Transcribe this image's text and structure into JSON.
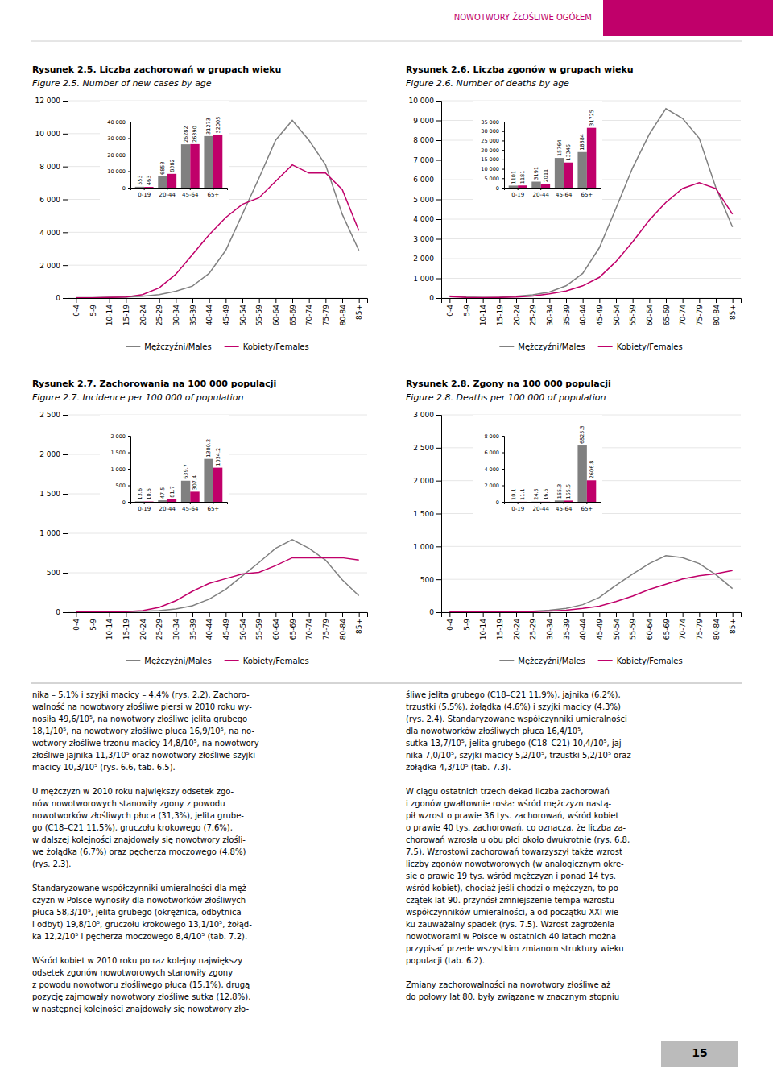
{
  "header": {
    "text": "NOWOTWORY ŽŁOŚLIWE OGÓŁEM",
    "color": "#c0006a"
  },
  "page_number": "15",
  "body_text": [
    [
      [
        "nika – 5,1% i szyjki macicy – 4,4% (rys. 2.2). Zachoro-",
        "walność na nowotwory złośliwe piersi w 2010 roku wy-",
        "nosiła 49,6/10⁵, na nowotwory złośliwe jelita grubego",
        "18,1/10⁵, na nowotwory złośliwe płuca 16,9/10⁵, na no-",
        "wotwory złośliwe trzonu macicy 14,8/10⁵, na nowotwory",
        "złośliwe jajnika 11,3/10⁵ oraz nowotwory złośliwe szyjki",
        "macicy 10,3/10⁵ (rys. 6.6, tab. 6.5)."
      ],
      [
        "U mężczyzn w 2010 roku największy odsetek zgo-",
        "nów nowotworowych stanowiły zgony z powodu",
        "nowotworków złośliwych płuca (31,3%), jelita grube-",
        "go (C18–C21 11,5%), gruczołu krokowego (7,6%),",
        "w dalszej kolejności znajdowały się nowotwory złośli-",
        "we żołądka (6,7%) oraz pęcherza moczowego (4,8%)",
        "(rys. 2.3)."
      ],
      [
        "Standaryzowane współczynniki umieralności dla męż-",
        "czyzn w Polsce wynosiły dla nowotworków złośliwych",
        "płuca 58,3/10⁵, jelita grubego (okrężnica, odbytnica",
        "i odbyt) 19,8/10⁵, gruczołu krokowego 13,1/10⁵, żołąd-",
        "ka 12,2/10⁵ i pęcherza moczowego 8,4/10⁵ (tab. 7.2)."
      ],
      [
        "Wśród kobiet w 2010 roku po raz kolejny największy",
        "odsetek zgonów nowotworowych stanowiły zgony",
        "z powodu nowotworu złośliwego płuca (15,1%), drugą",
        "pozycję zajmowały nowotwory złośliwe sutka (12,8%),",
        "w następnej kolejności znajdowały się nowotwory zło-"
      ]
    ],
    [
      [
        "śliwe jelita grubego (C18–C21 11,9%), jajnika (6,2%),",
        "trzustki (5,5%), żołądka (4,6%) i szyjki macicy (4,3%)",
        "(rys. 2.4). Standaryzowane współczynniki umieralności",
        "dla nowotworków złośliwych płuca 16,4/10⁵,",
        "sutka 13,7/10⁵, jelita grubego (C18–C21) 10,4/10⁵, jaj-",
        "nika 7,0/10⁵, szyjki macicy 5,2/10⁵, trzustki 5,2/10⁵ oraz",
        "żołądka 4,3/10⁵ (tab. 7.3)."
      ],
      [
        "W ciągu ostatnich trzech dekad liczba zachorowań",
        "i zgonów gwałtownie rosła: wśród mężczyzn nastą-",
        "pił wzrost o prawie 36 tys. zachorowań, wśród kobiet",
        "o prawie 40 tys. zachorowań, co oznacza, że liczba za-",
        "chorowań wzrosła u obu płci około dwukrotnie (rys. 6.8,",
        "7.5). Wzrostowi zachorowań towarzyszył także wzrost",
        "liczby zgonów nowotworowych (w analogicznym okre-",
        "sie o prawie 19 tys. wśród mężczyzn i ponad 14 tys.",
        "wśród kobiet), chociaż jeśli chodzi o mężczyzn, to po-",
        "czątek lat 90. przynósł zmniejszenie tempa wzrostu",
        "współczynników umieralności, a od początku XXI wie-",
        "ku zauważalny spadek (rys. 7.5). Wzrost zagrożenia",
        "nowotworami w Polsce w ostatnich 40 latach można",
        "przypisać przede wszystkim zmianom struktury wieku",
        "populacji (tab. 6.2)."
      ],
      [
        "Zmiany zachorowalności na nowotwory złośliwe aż",
        "do połowy lat 80. były związane w znacznym stopniu"
      ]
    ]
  ],
  "chart_data": [
    {
      "type": "line",
      "title": "Rysunek 2.5. Liczba zachorowań w grupach wieku",
      "subtitle": "Figure 2.5. Number of new cases by age",
      "categories": [
        "0-4",
        "5-9",
        "10-14",
        "15-19",
        "20-24",
        "25-29",
        "30-34",
        "35-39",
        "40-44",
        "45-49",
        "50-54",
        "55-59",
        "60-64",
        "65-69",
        "70-74",
        "75-79",
        "80-84",
        "85+"
      ],
      "series": [
        {
          "name": "Mężczyźni/Males",
          "color": "#808080",
          "values": [
            20,
            25,
            45,
            65,
            110,
            210,
            420,
            730,
            1500,
            2900,
            5100,
            7300,
            9600,
            10800,
            9600,
            8100,
            5100,
            2900
          ]
        },
        {
          "name": "Kobiety/Females",
          "color": "#c0006a",
          "values": [
            15,
            18,
            32,
            65,
            210,
            620,
            1450,
            2650,
            3850,
            4900,
            5700,
            6100,
            7100,
            8100,
            7600,
            7600,
            6600,
            4100
          ]
        }
      ],
      "ylim": [
        0,
        12000
      ],
      "yticks": [
        0,
        {
          "value": 2000,
          "label": "2 000"
        },
        {
          "value": 4000,
          "label": "4 000"
        },
        {
          "value": 6000,
          "label": "6 000"
        },
        {
          "value": 8000,
          "label": "8 000"
        },
        {
          "value": 10000,
          "label": "10 000"
        },
        {
          "value": 12000,
          "label": "12 000"
        }
      ],
      "grid": true,
      "legend": "bottom"
    },
    {
      "type": "bar",
      "categories": [
        "0-19",
        "20-44",
        "45-64",
        "65+"
      ],
      "series": [
        {
          "color": "#808080",
          "values": [
            553,
            6853,
            26282,
            31273
          ]
        },
        {
          "color": "#c0006a",
          "values": [
            463,
            8382,
            26390,
            32005
          ]
        }
      ],
      "ylim": [
        0,
        40000
      ],
      "yticks": [
        0,
        {
          "value": 10000,
          "label": "10 000"
        },
        {
          "value": 20000,
          "label": "20 000"
        },
        {
          "value": 30000,
          "label": "30 000"
        },
        {
          "value": 40000,
          "label": "40 000"
        }
      ],
      "data_labels": true
    },
    {
      "type": "line",
      "title": "Rysunek 2.6. Liczba zgonów w grupach wieku",
      "subtitle": "Figure 2.6. Number of deaths by age",
      "categories": [
        "0-4",
        "5-9",
        "10-14",
        "15-19",
        "20-24",
        "25-29",
        "30-34",
        "35-39",
        "40-44",
        "45-49",
        "50-54",
        "55-59",
        "60-64",
        "65-69",
        "70-74",
        "75-79",
        "80-84",
        "85+"
      ],
      "series": [
        {
          "name": "Mężczyźni/Males",
          "color": "#808080",
          "values": [
            100,
            50,
            35,
            45,
            90,
            160,
            310,
            620,
            1250,
            2550,
            4550,
            6600,
            8300,
            9600,
            9100,
            8100,
            5600,
            3600
          ]
        },
        {
          "name": "Kobiety/Females",
          "color": "#c0006a",
          "values": [
            70,
            35,
            22,
            32,
            55,
            105,
            210,
            360,
            620,
            1050,
            1850,
            2850,
            3950,
            4850,
            5550,
            5850,
            5550,
            4250
          ]
        }
      ],
      "ylim": [
        0,
        10000
      ],
      "yticks": [
        0,
        {
          "value": 1000,
          "label": "1 000"
        },
        {
          "value": 2000,
          "label": "2 000"
        },
        {
          "value": 3000,
          "label": "3 000"
        },
        {
          "value": 4000,
          "label": "4 000"
        },
        {
          "value": 5000,
          "label": "5 000"
        },
        {
          "value": 6000,
          "label": "6 000"
        },
        {
          "value": 7000,
          "label": "7 000"
        },
        {
          "value": 8000,
          "label": "8 000"
        },
        {
          "value": 9000,
          "label": "9 000"
        },
        {
          "value": 10000,
          "label": "10 000"
        }
      ],
      "grid": true,
      "legend": "bottom"
    },
    {
      "type": "bar",
      "categories": [
        "0-19",
        "20-44",
        "45-64",
        "65+"
      ],
      "series": [
        {
          "color": "#808080",
          "values": [
            1101,
            3191,
            15764,
            18884
          ]
        },
        {
          "color": "#c0006a",
          "values": [
            1181,
            2011,
            13346,
            31725
          ]
        }
      ],
      "ylim": [
        0,
        35000
      ],
      "yticks": [
        0,
        {
          "value": 5000,
          "label": "5 000"
        },
        {
          "value": 10000,
          "label": "10 000"
        },
        {
          "value": 15000,
          "label": "15 000"
        },
        {
          "value": 20000,
          "label": "20 000"
        },
        {
          "value": 25000,
          "label": "25 000"
        },
        {
          "value": 30000,
          "label": "30 000"
        },
        {
          "value": 35000,
          "label": "35 000"
        }
      ],
      "data_labels": true
    },
    {
      "type": "line",
      "title": "Rysunek 2.7. Zachorowania na 100 000 populacji",
      "subtitle": "Figure 2.7. Incidence per 100 000 of population",
      "categories": [
        "0-4",
        "5-9",
        "10-14",
        "15-19",
        "20-24",
        "25-29",
        "30-34",
        "35-39",
        "40-44",
        "45-49",
        "50-54",
        "55-59",
        "60-64",
        "65-69",
        "70-74",
        "75-79",
        "80-84",
        "85+"
      ],
      "series": [
        {
          "name": "Mężczyźni/Males",
          "color": "#808080",
          "values": [
            2,
            3,
            5,
            8,
            12,
            20,
            42,
            82,
            165,
            290,
            460,
            630,
            810,
            920,
            810,
            660,
            410,
            210
          ]
        },
        {
          "name": "Kobiety/Females",
          "color": "#c0006a",
          "values": [
            2,
            2,
            4,
            8,
            20,
            62,
            145,
            265,
            365,
            425,
            485,
            505,
            590,
            690,
            690,
            690,
            690,
            660
          ]
        }
      ],
      "ylim": [
        0,
        2500
      ],
      "yticks": [
        0,
        500,
        {
          "value": 1000,
          "label": "1 000"
        },
        {
          "value": 1500,
          "label": "1 500"
        },
        {
          "value": 2000,
          "label": "2 000"
        },
        {
          "value": 2500,
          "label": "2 500"
        }
      ],
      "grid": true,
      "legend": "bottom"
    },
    {
      "type": "bar",
      "categories": [
        "0-19",
        "20-44",
        "45-64",
        "65+"
      ],
      "series": [
        {
          "color": "#808080",
          "values": [
            13.6,
            47.5,
            639.7,
            1300.2
          ]
        },
        {
          "color": "#c0006a",
          "values": [
            10.6,
            81.7,
            307.4,
            1034.2
          ]
        }
      ],
      "ylim": [
        0,
        2000
      ],
      "yticks": [
        0,
        500,
        {
          "value": 1000,
          "label": "1 000"
        },
        {
          "value": 1500,
          "label": "1 500"
        },
        {
          "value": 2000,
          "label": "2 000"
        }
      ],
      "data_labels": true
    },
    {
      "type": "line",
      "title": "Rysunek 2.8. Zgony na 100 000 populacji",
      "subtitle": "Figure 2.8. Deaths per 100 000 of population",
      "categories": [
        "0-4",
        "5-9",
        "10-14",
        "15-19",
        "20-24",
        "25-29",
        "30-34",
        "35-39",
        "40-44",
        "45-49",
        "50-54",
        "55-59",
        "60-64",
        "65-69",
        "70-74",
        "75-79",
        "80-84",
        "85+"
      ],
      "series": [
        {
          "name": "Mężczyźni/Males",
          "color": "#808080",
          "values": [
            8,
            5,
            4,
            5,
            8,
            14,
            30,
            57,
            115,
            225,
            410,
            580,
            740,
            860,
            830,
            740,
            570,
            360
          ]
        },
        {
          "name": "Kobiety/Females",
          "color": "#c0006a",
          "values": [
            6,
            3,
            2,
            3,
            5,
            9,
            18,
            31,
            57,
            92,
            163,
            245,
            345,
            425,
            505,
            555,
            585,
            635
          ]
        }
      ],
      "ylim": [
        0,
        3000
      ],
      "yticks": [
        0,
        500,
        {
          "value": 1000,
          "label": "1 000"
        },
        {
          "value": 1500,
          "label": "1 500"
        },
        {
          "value": 2000,
          "label": "2 000"
        },
        {
          "value": 2500,
          "label": "2 500"
        },
        {
          "value": 3000,
          "label": "3 000"
        }
      ],
      "grid": true,
      "legend": "bottom"
    },
    {
      "type": "bar",
      "categories": [
        "0-19",
        "20-44",
        "45-64",
        "65+"
      ],
      "series": [
        {
          "color": "#808080",
          "values": [
            10.1,
            24.5,
            165.3,
            6825.3
          ]
        },
        {
          "color": "#c0006a",
          "values": [
            11.1,
            16.5,
            155.5,
            2606.8
          ]
        }
      ],
      "ylim": [
        0,
        8000
      ],
      "yticks": [
        0,
        {
          "value": 2000,
          "label": "2 000"
        },
        {
          "value": 4000,
          "label": "4 000"
        },
        {
          "value": 6000,
          "label": "6 000"
        },
        {
          "value": 8000,
          "label": "8 000"
        }
      ],
      "data_labels": true
    }
  ]
}
